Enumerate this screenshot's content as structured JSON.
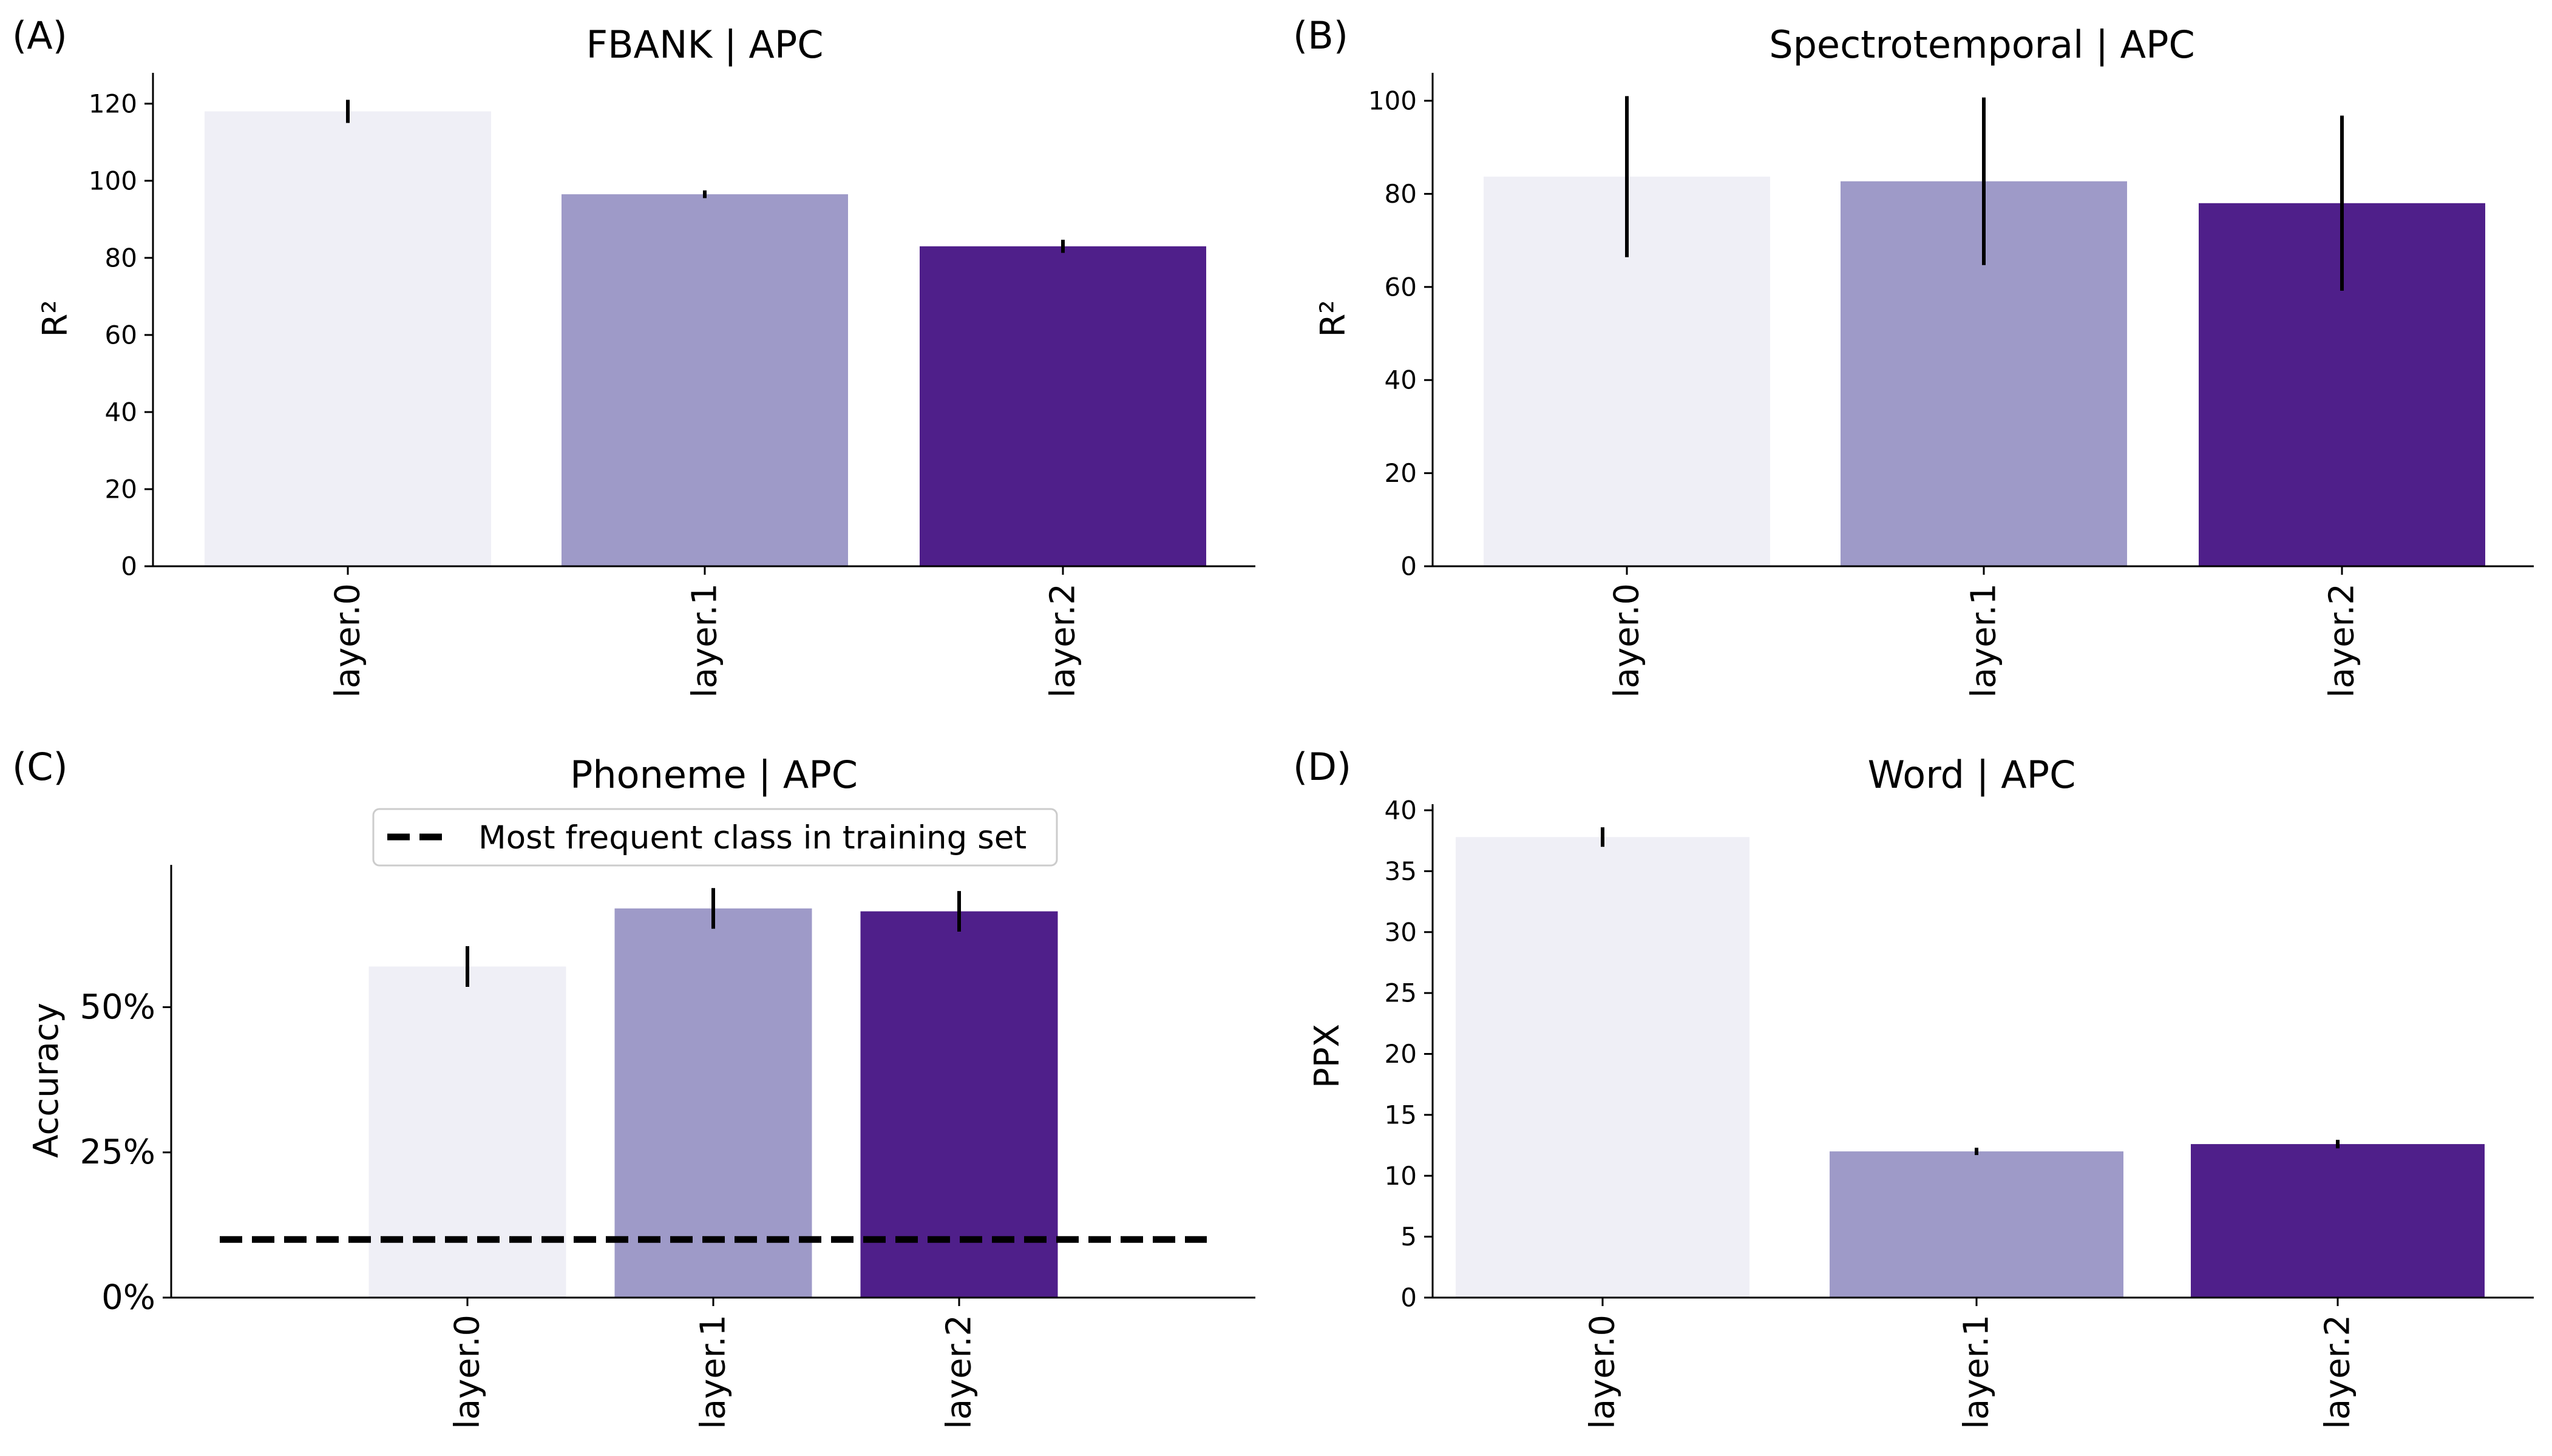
{
  "figure": {
    "colors": [
      "#efeff6",
      "#9e9ac8",
      "#4f1f8a"
    ]
  },
  "panels": [
    {
      "letter": "(A)",
      "title": "FBANK | APC",
      "ylabel": "R²",
      "yticks": [
        "0",
        "20",
        "40",
        "60",
        "80",
        "100",
        "120"
      ]
    },
    {
      "letter": "(B)",
      "title": "Spectrotemporal | APC",
      "ylabel": "R²",
      "yticks": [
        "0",
        "20",
        "40",
        "60",
        "80",
        "100"
      ]
    },
    {
      "letter": "(C)",
      "title": "Phoneme | APC",
      "ylabel": "Accuracy",
      "yticks": [
        "0%",
        "25%",
        "50%"
      ],
      "legend": "Most frequent class in training set"
    },
    {
      "letter": "(D)",
      "title": "Word | APC",
      "ylabel": "PPX",
      "yticks": [
        "0",
        "5",
        "10",
        "15",
        "20",
        "25",
        "30",
        "35",
        "40"
      ]
    }
  ],
  "chart_data": [
    {
      "type": "bar",
      "title": "FBANK | APC",
      "categories": [
        "layer.0",
        "layer.1",
        "layer.2"
      ],
      "values": [
        118,
        96.5,
        83
      ],
      "errors": [
        3,
        1,
        1.7
      ],
      "xlabel": "",
      "ylabel": "R²",
      "ylim": [
        0,
        128
      ],
      "yticks": [
        0,
        20,
        40,
        60,
        80,
        100,
        120
      ]
    },
    {
      "type": "bar",
      "title": "Spectrotemporal | APC",
      "categories": [
        "layer.0",
        "layer.1",
        "layer.2"
      ],
      "values": [
        83.7,
        82.7,
        78
      ],
      "errors": [
        17.3,
        18,
        18.8
      ],
      "xlabel": "",
      "ylabel": "R²",
      "ylim": [
        0,
        106
      ],
      "yticks": [
        0,
        20,
        40,
        60,
        80,
        100
      ]
    },
    {
      "type": "bar",
      "title": "Phoneme | APC",
      "categories": [
        "layer.0",
        "layer.1",
        "layer.2"
      ],
      "values": [
        57,
        67,
        66.5
      ],
      "errors": [
        3.5,
        3.5,
        3.5
      ],
      "xlabel": "",
      "ylabel": "Accuracy",
      "ylim": [
        0,
        74.5
      ],
      "yticks": [
        0,
        25,
        50
      ],
      "baseline": {
        "label": "Most frequent class in training set",
        "value": 10
      }
    },
    {
      "type": "bar",
      "title": "Word | APC",
      "categories": [
        "layer.0",
        "layer.1",
        "layer.2"
      ],
      "values": [
        37.8,
        12,
        12.6
      ],
      "errors": [
        0.8,
        0.3,
        0.35
      ],
      "xlabel": "",
      "ylabel": "PPX",
      "ylim": [
        0,
        40.5
      ],
      "yticks": [
        0,
        5,
        10,
        15,
        20,
        25,
        30,
        35,
        40
      ]
    }
  ]
}
